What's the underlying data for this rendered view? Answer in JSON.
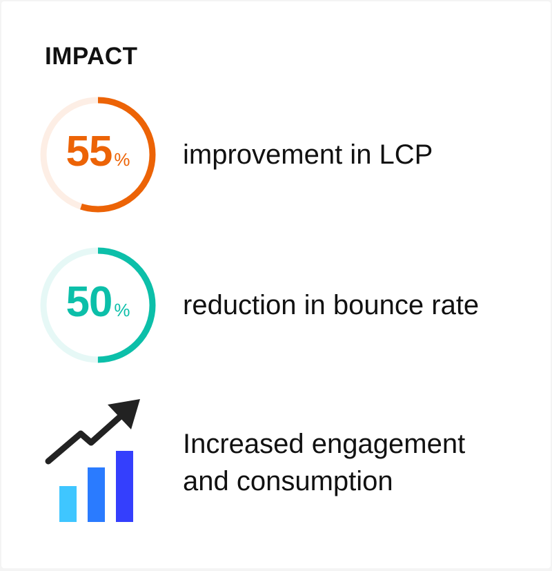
{
  "title": "IMPACT",
  "items": [
    {
      "value": "55",
      "unit": "%",
      "progress": 55,
      "label": "improvement in LCP",
      "color": "#ec6306",
      "track_color": "#fdeee5"
    },
    {
      "value": "50",
      "unit": "%",
      "progress": 50,
      "label": "reduction in bounce rate",
      "color": "#0cbfa9",
      "track_color": "#e6f8f6"
    }
  ],
  "growth": {
    "icon": "chart-growth-icon",
    "label_line1": "Increased engagement",
    "label_line2": "and consumption",
    "bar_colors": [
      "#3fc6ff",
      "#2a7bff",
      "#343ffd"
    ],
    "arrow_color": "#222222"
  }
}
